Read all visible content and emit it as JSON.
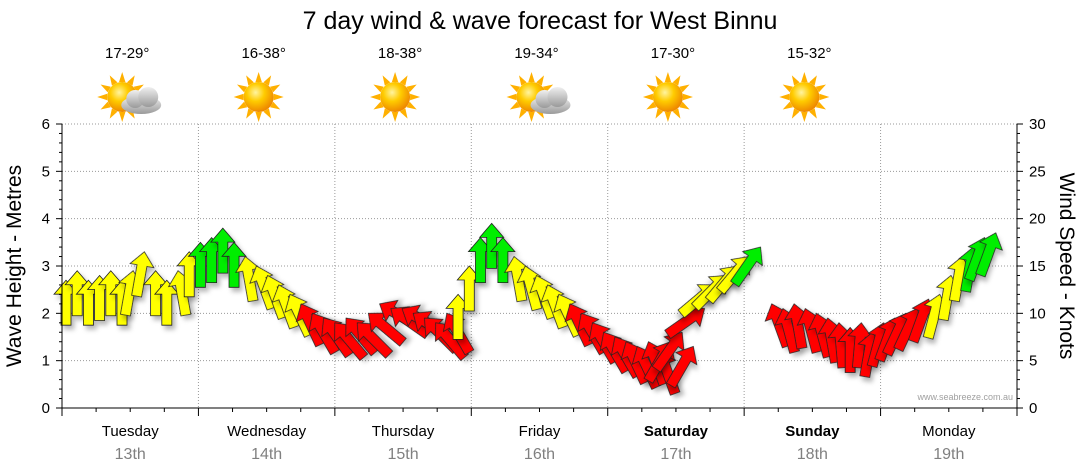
{
  "title": "7 day wind & wave forecast for West Binnu",
  "credit": "www.seabreeze.com.au",
  "colors": {
    "wind_light": "#ff0000",
    "wind_moderate": "#ffff00",
    "wind_strong": "#00ee00",
    "grid": "#9a9a9a",
    "sun": "#ffbb00"
  },
  "days": [
    {
      "day": "Tuesday",
      "date": "13th",
      "temp": "17-29°",
      "icon": "sun-cloud-icon",
      "bold": false
    },
    {
      "day": "Wednesday",
      "date": "14th",
      "temp": "16-38°",
      "icon": "sun-icon",
      "bold": false
    },
    {
      "day": "Thursday",
      "date": "15th",
      "temp": "18-38°",
      "icon": "sun-icon",
      "bold": false
    },
    {
      "day": "Friday",
      "date": "16th",
      "temp": "19-34°",
      "icon": "sun-cloud-icon",
      "bold": false
    },
    {
      "day": "Saturday",
      "date": "17th",
      "temp": "17-30°",
      "icon": "sun-icon",
      "bold": true
    },
    {
      "day": "Sunday",
      "date": "18th",
      "temp": "15-32°",
      "icon": "sun-icon",
      "bold": true
    },
    {
      "day": "Monday",
      "date": "19th",
      "temp": "",
      "icon": "",
      "bold": false
    }
  ],
  "chart_data": {
    "type": "scatter",
    "title": "7 day wind & wave forecast for West Binnu",
    "ylabel_left": "Wave Height - Metres",
    "ylabel_right": "Wind Speed - Knots",
    "ylim_left": [
      0,
      6
    ],
    "ylim_right": [
      0,
      30
    ],
    "yticks_left": [
      "0",
      "1",
      "2",
      "3",
      "4",
      "5",
      "6"
    ],
    "yticks_right": [
      "0",
      "5",
      "10",
      "15",
      "20",
      "25",
      "30"
    ],
    "x_unit": "hours since Tuesday 13th 00:00",
    "xlim": [
      0,
      168
    ],
    "grid": true,
    "series": [
      {
        "name": "Wind Speed - Knots",
        "values": [
          {
            "t": 0,
            "knots": 13.5,
            "dir": 0
          },
          {
            "t": 2,
            "knots": 14.5,
            "dir": 0
          },
          {
            "t": 4,
            "knots": 13.5,
            "dir": 0
          },
          {
            "t": 6,
            "knots": 14,
            "dir": 0
          },
          {
            "t": 8,
            "knots": 14.5,
            "dir": 0
          },
          {
            "t": 10,
            "knots": 13.5,
            "dir": 0
          },
          {
            "t": 12,
            "knots": 14.5,
            "dir": 10
          },
          {
            "t": 14,
            "knots": 16.5,
            "dir": 10
          },
          {
            "t": 16,
            "knots": 14.5,
            "dir": 0
          },
          {
            "t": 18,
            "knots": 13.5,
            "dir": 0
          },
          {
            "t": 20,
            "knots": 14.5,
            "dir": -10
          },
          {
            "t": 22,
            "knots": 16.5,
            "dir": 0
          },
          {
            "t": 24,
            "knots": 17.5,
            "dir": 0
          },
          {
            "t": 26,
            "knots": 18,
            "dir": 0
          },
          {
            "t": 28,
            "knots": 19,
            "dir": 0
          },
          {
            "t": 30,
            "knots": 17.5,
            "dir": 0
          },
          {
            "t": 32,
            "knots": 16,
            "dir": -10
          },
          {
            "t": 34,
            "knots": 15,
            "dir": -20
          },
          {
            "t": 36,
            "knots": 14,
            "dir": -20
          },
          {
            "t": 38,
            "knots": 13,
            "dir": -20
          },
          {
            "t": 40,
            "knots": 12,
            "dir": -25
          },
          {
            "t": 42,
            "knots": 11,
            "dir": -25
          },
          {
            "t": 44,
            "knots": 10,
            "dir": -30
          },
          {
            "t": 46,
            "knots": 9.5,
            "dir": -35
          },
          {
            "t": 48,
            "knots": 9,
            "dir": -40
          },
          {
            "t": 50,
            "knots": 9.5,
            "dir": -40
          },
          {
            "t": 52,
            "knots": 9,
            "dir": -45
          },
          {
            "t": 54,
            "knots": 10,
            "dir": -50
          },
          {
            "t": 56,
            "knots": 11,
            "dir": -60
          },
          {
            "t": 58,
            "knots": 10.5,
            "dir": -55
          },
          {
            "t": 60,
            "knots": 10.5,
            "dir": -60
          },
          {
            "t": 62,
            "knots": 10,
            "dir": -55
          },
          {
            "t": 64,
            "knots": 9.5,
            "dir": -45
          },
          {
            "t": 66,
            "knots": 9,
            "dir": -40
          },
          {
            "t": 68,
            "knots": 10,
            "dir": -30
          },
          {
            "t": 70,
            "knots": 12,
            "dir": 0
          },
          {
            "t": 72,
            "knots": 15,
            "dir": 0
          },
          {
            "t": 74,
            "knots": 18,
            "dir": 0
          },
          {
            "t": 76,
            "knots": 19.5,
            "dir": 0
          },
          {
            "t": 78,
            "knots": 18,
            "dir": 0
          },
          {
            "t": 80,
            "knots": 16,
            "dir": -10
          },
          {
            "t": 82,
            "knots": 15,
            "dir": -15
          },
          {
            "t": 84,
            "knots": 14,
            "dir": -20
          },
          {
            "t": 86,
            "knots": 13,
            "dir": -20
          },
          {
            "t": 88,
            "knots": 12,
            "dir": -25
          },
          {
            "t": 90,
            "knots": 11,
            "dir": -25
          },
          {
            "t": 92,
            "knots": 10,
            "dir": -30
          },
          {
            "t": 94,
            "knots": 9,
            "dir": -30
          },
          {
            "t": 96,
            "knots": 8,
            "dir": -30
          },
          {
            "t": 98,
            "knots": 7.5,
            "dir": -30
          },
          {
            "t": 100,
            "knots": 7,
            "dir": -25
          },
          {
            "t": 102,
            "knots": 6.5,
            "dir": -25
          },
          {
            "t": 104,
            "knots": 7,
            "dir": -20
          },
          {
            "t": 106,
            "knots": 6,
            "dir": -20
          },
          {
            "t": 108,
            "knots": 7,
            "dir": 30
          },
          {
            "t": 110,
            "knots": 8,
            "dir": 35
          },
          {
            "t": 112,
            "knots": 6.5,
            "dir": 30
          },
          {
            "t": 114,
            "knots": 10.5,
            "dir": 55
          },
          {
            "t": 116,
            "knots": 13,
            "dir": 50
          },
          {
            "t": 118,
            "knots": 14,
            "dir": 45
          },
          {
            "t": 120,
            "knots": 15,
            "dir": 40
          },
          {
            "t": 122,
            "knots": 16,
            "dir": 40
          },
          {
            "t": 124,
            "knots": 17,
            "dir": 35
          },
          {
            "t": 126,
            "knots": 11,
            "dir": -20
          },
          {
            "t": 128,
            "knots": 10.5,
            "dir": -15
          },
          {
            "t": 130,
            "knots": 11,
            "dir": -10
          },
          {
            "t": 132,
            "knots": 10.5,
            "dir": -15
          },
          {
            "t": 134,
            "knots": 10,
            "dir": -15
          },
          {
            "t": 136,
            "knots": 9.5,
            "dir": -10
          },
          {
            "t": 138,
            "knots": 9,
            "dir": -5
          },
          {
            "t": 140,
            "knots": 8.5,
            "dir": 0
          },
          {
            "t": 142,
            "knots": 9,
            "dir": 5
          },
          {
            "t": 144,
            "knots": 8,
            "dir": 10
          },
          {
            "t": 146,
            "knots": 9,
            "dir": 15
          },
          {
            "t": 148,
            "knots": 9.5,
            "dir": 20
          },
          {
            "t": 150,
            "knots": 10,
            "dir": 25
          },
          {
            "t": 152,
            "knots": 10.5,
            "dir": 25
          },
          {
            "t": 154,
            "knots": 11.5,
            "dir": 20
          },
          {
            "t": 156,
            "knots": 12,
            "dir": 15
          },
          {
            "t": 158,
            "knots": 14,
            "dir": 10
          },
          {
            "t": 160,
            "knots": 16,
            "dir": 10
          },
          {
            "t": 162,
            "knots": 17,
            "dir": 10
          },
          {
            "t": 164,
            "knots": 18,
            "dir": 20
          },
          {
            "t": 166,
            "knots": 18.5,
            "dir": 20
          }
        ]
      }
    ]
  }
}
